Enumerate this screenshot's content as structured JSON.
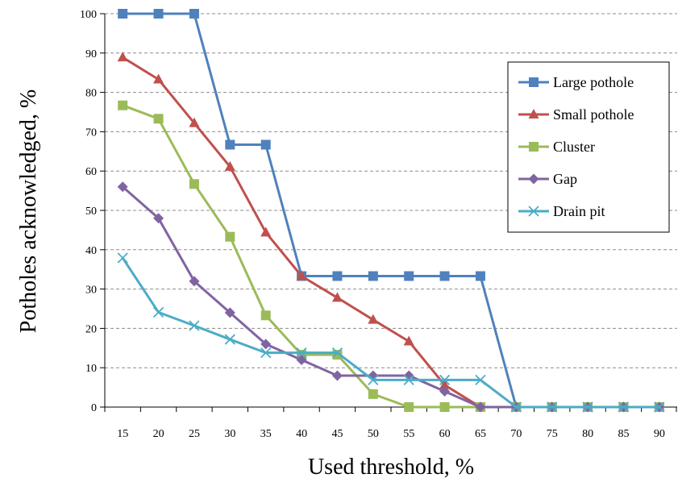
{
  "chart_data": {
    "type": "line",
    "title": "",
    "xlabel": "Used threshold, %",
    "ylabel": "Potholes acknowledged, %",
    "x": [
      15,
      20,
      25,
      30,
      35,
      40,
      45,
      50,
      55,
      60,
      65,
      70,
      75,
      80,
      85,
      90
    ],
    "ylim": [
      0,
      100
    ],
    "yticks": [
      0,
      10,
      20,
      30,
      40,
      50,
      60,
      70,
      80,
      90,
      100
    ],
    "grid": "horizontal dashed",
    "legend_position": "right",
    "series": [
      {
        "name": "Large pothole",
        "color": "#4F81BD",
        "marker": "square",
        "values": [
          100,
          100,
          100,
          66.7,
          66.7,
          33.3,
          33.3,
          33.3,
          33.3,
          33.3,
          33.3,
          0,
          0,
          0,
          0,
          0
        ]
      },
      {
        "name": "Small pothole",
        "color": "#C0504D",
        "marker": "triangle",
        "values": [
          88.9,
          83.3,
          72.2,
          61.1,
          44.4,
          33.3,
          27.8,
          22.2,
          16.7,
          5.6,
          0,
          0,
          0,
          0,
          0,
          0
        ]
      },
      {
        "name": "Cluster",
        "color": "#9BBB59",
        "marker": "square",
        "values": [
          76.7,
          73.3,
          56.7,
          43.3,
          23.3,
          13.3,
          13.3,
          3.3,
          0,
          0,
          0,
          0,
          0,
          0,
          0,
          0
        ]
      },
      {
        "name": "Gap",
        "color": "#8064A2",
        "marker": "diamond",
        "values": [
          56,
          48,
          32,
          24,
          16,
          12,
          8,
          8,
          8,
          4,
          0,
          0,
          0,
          0,
          0,
          0
        ]
      },
      {
        "name": "Drain pit",
        "color": "#4BACC6",
        "marker": "x",
        "values": [
          37.9,
          24.1,
          20.7,
          17.2,
          13.8,
          13.8,
          13.8,
          6.9,
          6.9,
          6.9,
          6.9,
          0,
          0,
          0,
          0,
          0
        ]
      }
    ]
  }
}
